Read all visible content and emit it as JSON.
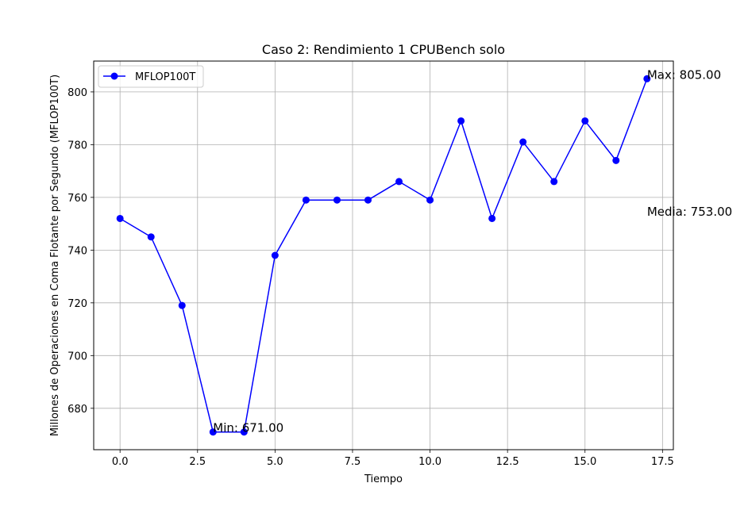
{
  "chart_data": {
    "type": "line",
    "title": "Caso 2: Rendimiento 1 CPUBench solo",
    "xlabel": "Tiempo",
    "ylabel": "Millones de Operaciones en Coma Flotante por Segundo (MFLOP100T)",
    "xlim": [
      -0.85,
      17.85
    ],
    "ylim": [
      664.3,
      811.7
    ],
    "xticks": [
      0.0,
      2.5,
      5.0,
      7.5,
      10.0,
      12.5,
      15.0,
      17.5
    ],
    "xtick_labels": [
      "0.0",
      "2.5",
      "5.0",
      "7.5",
      "10.0",
      "12.5",
      "15.0",
      "17.5"
    ],
    "yticks": [
      680,
      700,
      720,
      740,
      760,
      780,
      800
    ],
    "ytick_labels": [
      "680",
      "700",
      "720",
      "740",
      "760",
      "780",
      "800"
    ],
    "grid": true,
    "legend_position": "upper left",
    "series": [
      {
        "name": "MFLOP100T",
        "color": "#0000ff",
        "marker": "circle",
        "x": [
          0,
          1,
          2,
          3,
          4,
          5,
          6,
          7,
          8,
          9,
          10,
          11,
          12,
          13,
          14,
          15,
          16,
          17
        ],
        "y": [
          752,
          745,
          719,
          671,
          671,
          738,
          759,
          759,
          759,
          766,
          759,
          789,
          752,
          781,
          766,
          789,
          774,
          805
        ]
      }
    ],
    "annotations": [
      {
        "text": "Max: 805.00",
        "x": 17,
        "y": 805
      },
      {
        "text": "Min: 671.00",
        "x": 3,
        "y": 671
      },
      {
        "text": "Media: 753.00",
        "x": 17,
        "y": 753
      }
    ]
  }
}
